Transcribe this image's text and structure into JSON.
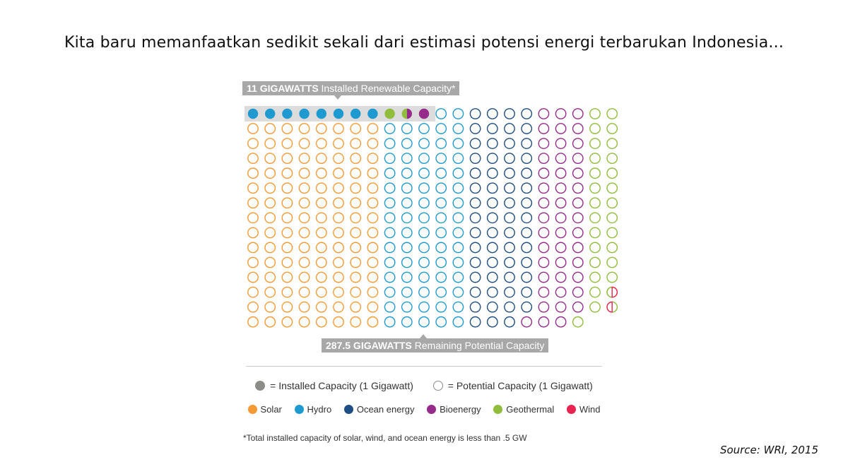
{
  "title": "Kita baru memanfaatkan sedikit sekali dari estimasi potensi energi terbarukan Indonesia...",
  "callout_installed": {
    "value": "11 GIGAWATTS",
    "label": "Installed Renewable Capacity*"
  },
  "callout_remaining": {
    "value": "287.5 GIGAWATTS",
    "label": "Remaining Potential Capacity"
  },
  "legend_fill": {
    "installed": "= Installed Capacity (1 Gigawatt)",
    "potential": "= Potential Capacity (1 Gigawatt)"
  },
  "legend_sources": [
    {
      "name": "Solar",
      "color": "#f39a34"
    },
    {
      "name": "Hydro",
      "color": "#1f9ad0"
    },
    {
      "name": "Ocean energy",
      "color": "#1e4e84"
    },
    {
      "name": "Bioenergy",
      "color": "#962b8c"
    },
    {
      "name": "Geothermal",
      "color": "#90bd3c"
    },
    {
      "name": "Wind",
      "color": "#e7234f"
    }
  ],
  "footnote": "*Total installed capacity of solar, wind, and ocean energy is less than .5 GW",
  "source": "Source: WRI, 2015",
  "chart_data": {
    "type": "waffle",
    "unit": "1 Gigawatt per circle",
    "installed_total_gw": 11,
    "remaining_total_gw": 287.5,
    "installed_row": [
      "Hydro",
      "Hydro",
      "Hydro",
      "Hydro",
      "Hydro",
      "Hydro",
      "Hydro",
      "Hydro",
      "Geothermal",
      "Geothermal/Bioenergy",
      "Bioenergy"
    ],
    "columns": [
      "Solar",
      "Solar",
      "Solar",
      "Solar",
      "Solar",
      "Solar",
      "Solar",
      "Solar",
      "Hydro",
      "Hydro",
      "Hydro",
      "Hydro",
      "Hydro",
      "Ocean energy",
      "Ocean energy",
      "Ocean energy",
      "Ocean energy",
      "Bioenergy",
      "Bioenergy",
      "Bioenergy",
      "Geothermal",
      "Geothermal"
    ],
    "column_rows": [
      15,
      15,
      15,
      15,
      15,
      15,
      15,
      15,
      15,
      15,
      15,
      15,
      15,
      15,
      15,
      15,
      15,
      15,
      15,
      15,
      15,
      14
    ],
    "last_row_starts_at_column": 15,
    "wind_half_circles": 2
  }
}
